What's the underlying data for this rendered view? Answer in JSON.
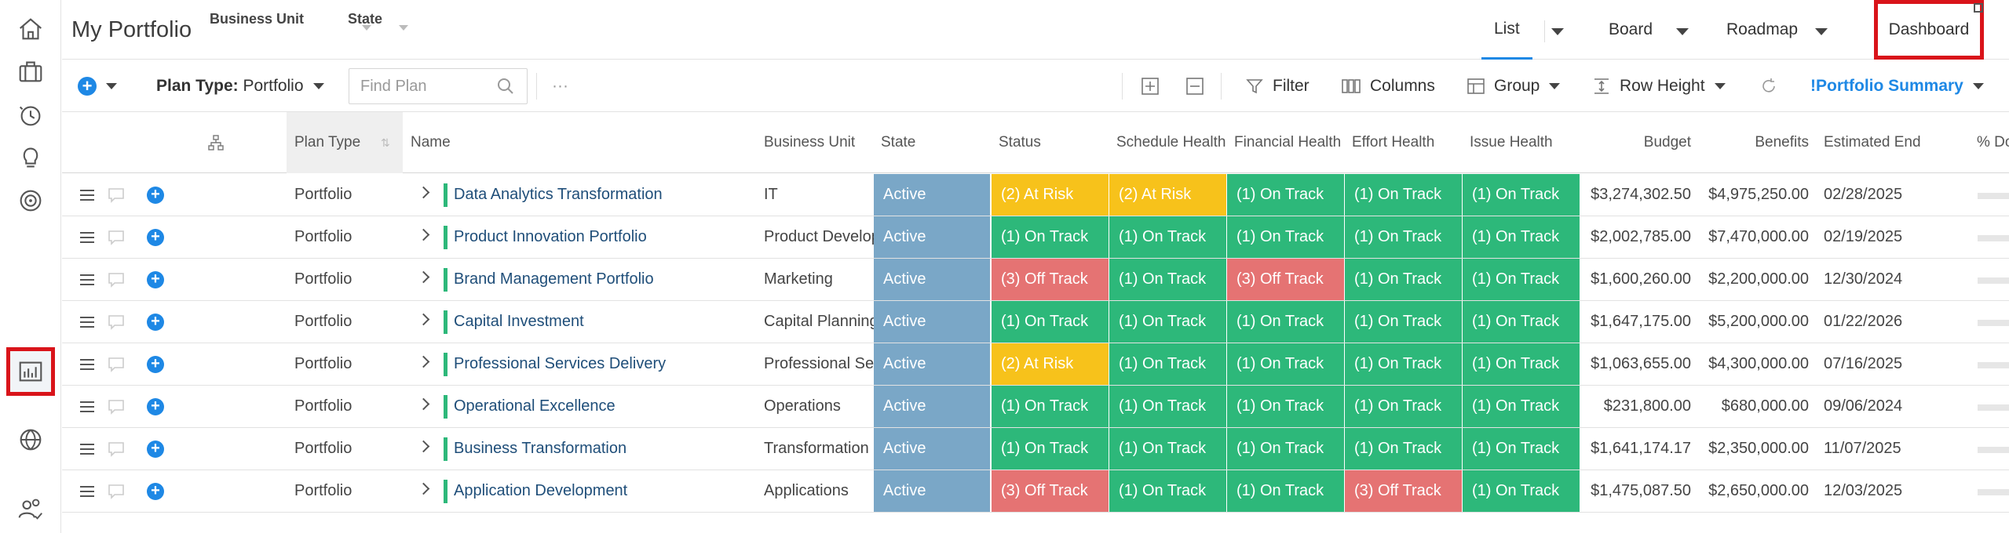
{
  "header": {
    "title": "My Portfolio",
    "filters": [
      "Business Unit",
      "State"
    ],
    "view_tabs": [
      "List",
      "Board",
      "Roadmap"
    ],
    "dashboard_label": "Dashboard"
  },
  "toolbar": {
    "plan_type_label": "Plan Type:",
    "plan_type_value": "Portfolio",
    "search_placeholder": "Find Plan",
    "more": "···",
    "filter": "Filter",
    "columns": "Columns",
    "group": "Group",
    "row_height": "Row Height",
    "view_name": "!Portfolio Summary"
  },
  "columns": [
    "Plan Type",
    "Name",
    "Business Unit",
    "State",
    "Status",
    "Schedule Health",
    "Financial Health",
    "Effort Health",
    "Issue Health",
    "Budget",
    "Benefits",
    "Estimated End",
    "% Do"
  ],
  "colors": {
    "accent": "#1e88e5",
    "active": "#7aa7c7",
    "on_track": "#2db87a",
    "at_risk": "#f7c21b",
    "off_track": "#e57373",
    "highlight": "#d9141a"
  },
  "rows": [
    {
      "plan_type": "Portfolio",
      "name": "Data Analytics Transformation",
      "business_unit": "IT",
      "state": "Active",
      "status": "(2) At Risk",
      "schedule": "(2) At Risk",
      "financial": "(1) On Track",
      "effort": "(1) On Track",
      "issue": "(1) On Track",
      "budget": "$3,274,302.50",
      "benefits": "$4,975,250.00",
      "end": "02/28/2025"
    },
    {
      "plan_type": "Portfolio",
      "name": "Product Innovation Portfolio",
      "business_unit": "Product Develop",
      "state": "Active",
      "status": "(1) On Track",
      "schedule": "(1) On Track",
      "financial": "(1) On Track",
      "effort": "(1) On Track",
      "issue": "(1) On Track",
      "budget": "$2,002,785.00",
      "benefits": "$7,470,000.00",
      "end": "02/19/2025"
    },
    {
      "plan_type": "Portfolio",
      "name": "Brand Management Portfolio",
      "business_unit": "Marketing",
      "state": "Active",
      "status": "(3) Off Track",
      "schedule": "(1) On Track",
      "financial": "(3) Off Track",
      "effort": "(1) On Track",
      "issue": "(1) On Track",
      "budget": "$1,600,260.00",
      "benefits": "$2,200,000.00",
      "end": "12/30/2024"
    },
    {
      "plan_type": "Portfolio",
      "name": "Capital Investment",
      "business_unit": "Capital Planning",
      "state": "Active",
      "status": "(1) On Track",
      "schedule": "(1) On Track",
      "financial": "(1) On Track",
      "effort": "(1) On Track",
      "issue": "(1) On Track",
      "budget": "$1,647,175.00",
      "benefits": "$5,200,000.00",
      "end": "01/22/2026"
    },
    {
      "plan_type": "Portfolio",
      "name": "Professional Services Delivery",
      "business_unit": "Professional Ser",
      "state": "Active",
      "status": "(2) At Risk",
      "schedule": "(1) On Track",
      "financial": "(1) On Track",
      "effort": "(1) On Track",
      "issue": "(1) On Track",
      "budget": "$1,063,655.00",
      "benefits": "$4,300,000.00",
      "end": "07/16/2025"
    },
    {
      "plan_type": "Portfolio",
      "name": "Operational Excellence",
      "business_unit": "Operations",
      "state": "Active",
      "status": "(1) On Track",
      "schedule": "(1) On Track",
      "financial": "(1) On Track",
      "effort": "(1) On Track",
      "issue": "(1) On Track",
      "budget": "$231,800.00",
      "benefits": "$680,000.00",
      "end": "09/06/2024"
    },
    {
      "plan_type": "Portfolio",
      "name": "Business Transformation",
      "business_unit": "Transformation",
      "state": "Active",
      "status": "(1) On Track",
      "schedule": "(1) On Track",
      "financial": "(1) On Track",
      "effort": "(1) On Track",
      "issue": "(1) On Track",
      "budget": "$1,641,174.17",
      "benefits": "$2,350,000.00",
      "end": "11/07/2025"
    },
    {
      "plan_type": "Portfolio",
      "name": "Application Development",
      "business_unit": "Applications",
      "state": "Active",
      "status": "(3) Off Track",
      "schedule": "(1) On Track",
      "financial": "(1) On Track",
      "effort": "(3) Off Track",
      "issue": "(1) On Track",
      "budget": "$1,475,087.50",
      "benefits": "$2,650,000.00",
      "end": "12/03/2025"
    }
  ]
}
